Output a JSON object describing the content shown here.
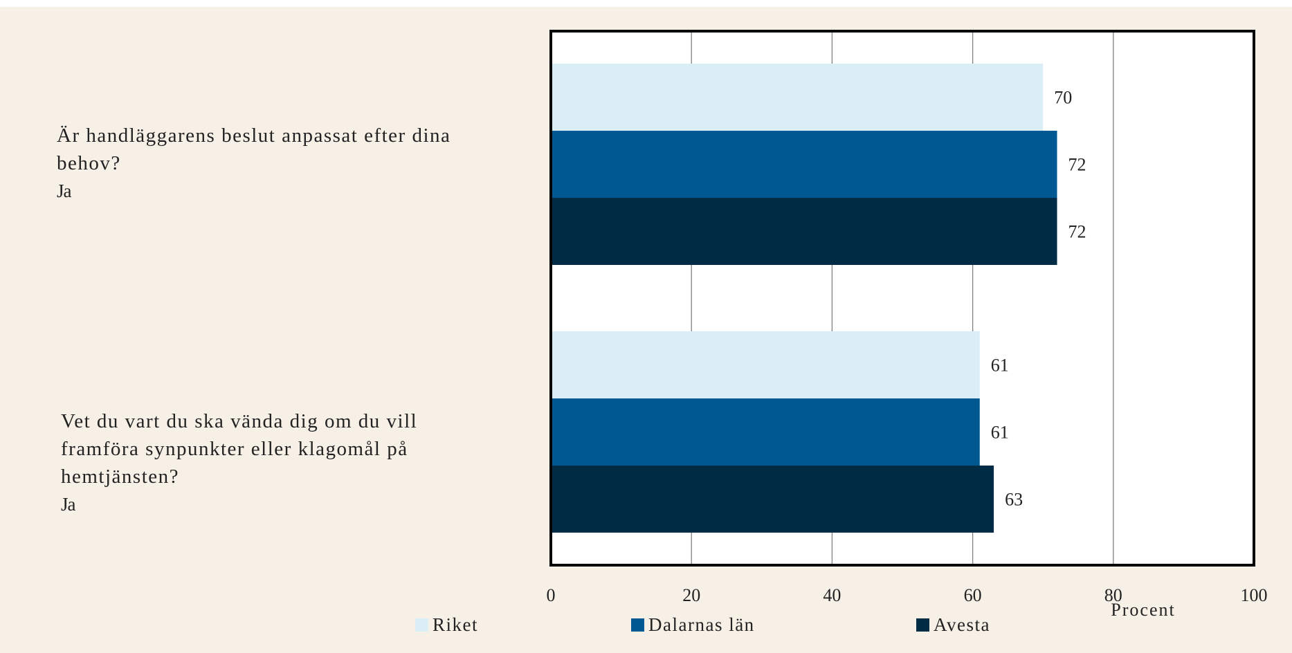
{
  "chart_data": {
    "type": "bar",
    "orientation": "horizontal",
    "categories": [
      {
        "question": "Är handläggarens beslut anpassat efter dina behov?",
        "answer": "Ja"
      },
      {
        "question": "Vet du vart du ska vända dig om du vill framföra synpunkter eller klagomål på hemtjänsten?",
        "answer": "Ja"
      }
    ],
    "series": [
      {
        "name": "Riket",
        "color": "#daeef6",
        "values": [
          70,
          61
        ]
      },
      {
        "name": "Dalarnas län",
        "color": "#005893",
        "values": [
          72,
          61
        ]
      },
      {
        "name": "Avesta",
        "color": "#002b45",
        "values": [
          72,
          63
        ]
      }
    ],
    "xlim": [
      0,
      100
    ],
    "xticks": [
      0,
      20,
      40,
      60,
      80,
      100
    ],
    "xlabel": "Procent",
    "grid": true,
    "legend_position": "bottom"
  }
}
